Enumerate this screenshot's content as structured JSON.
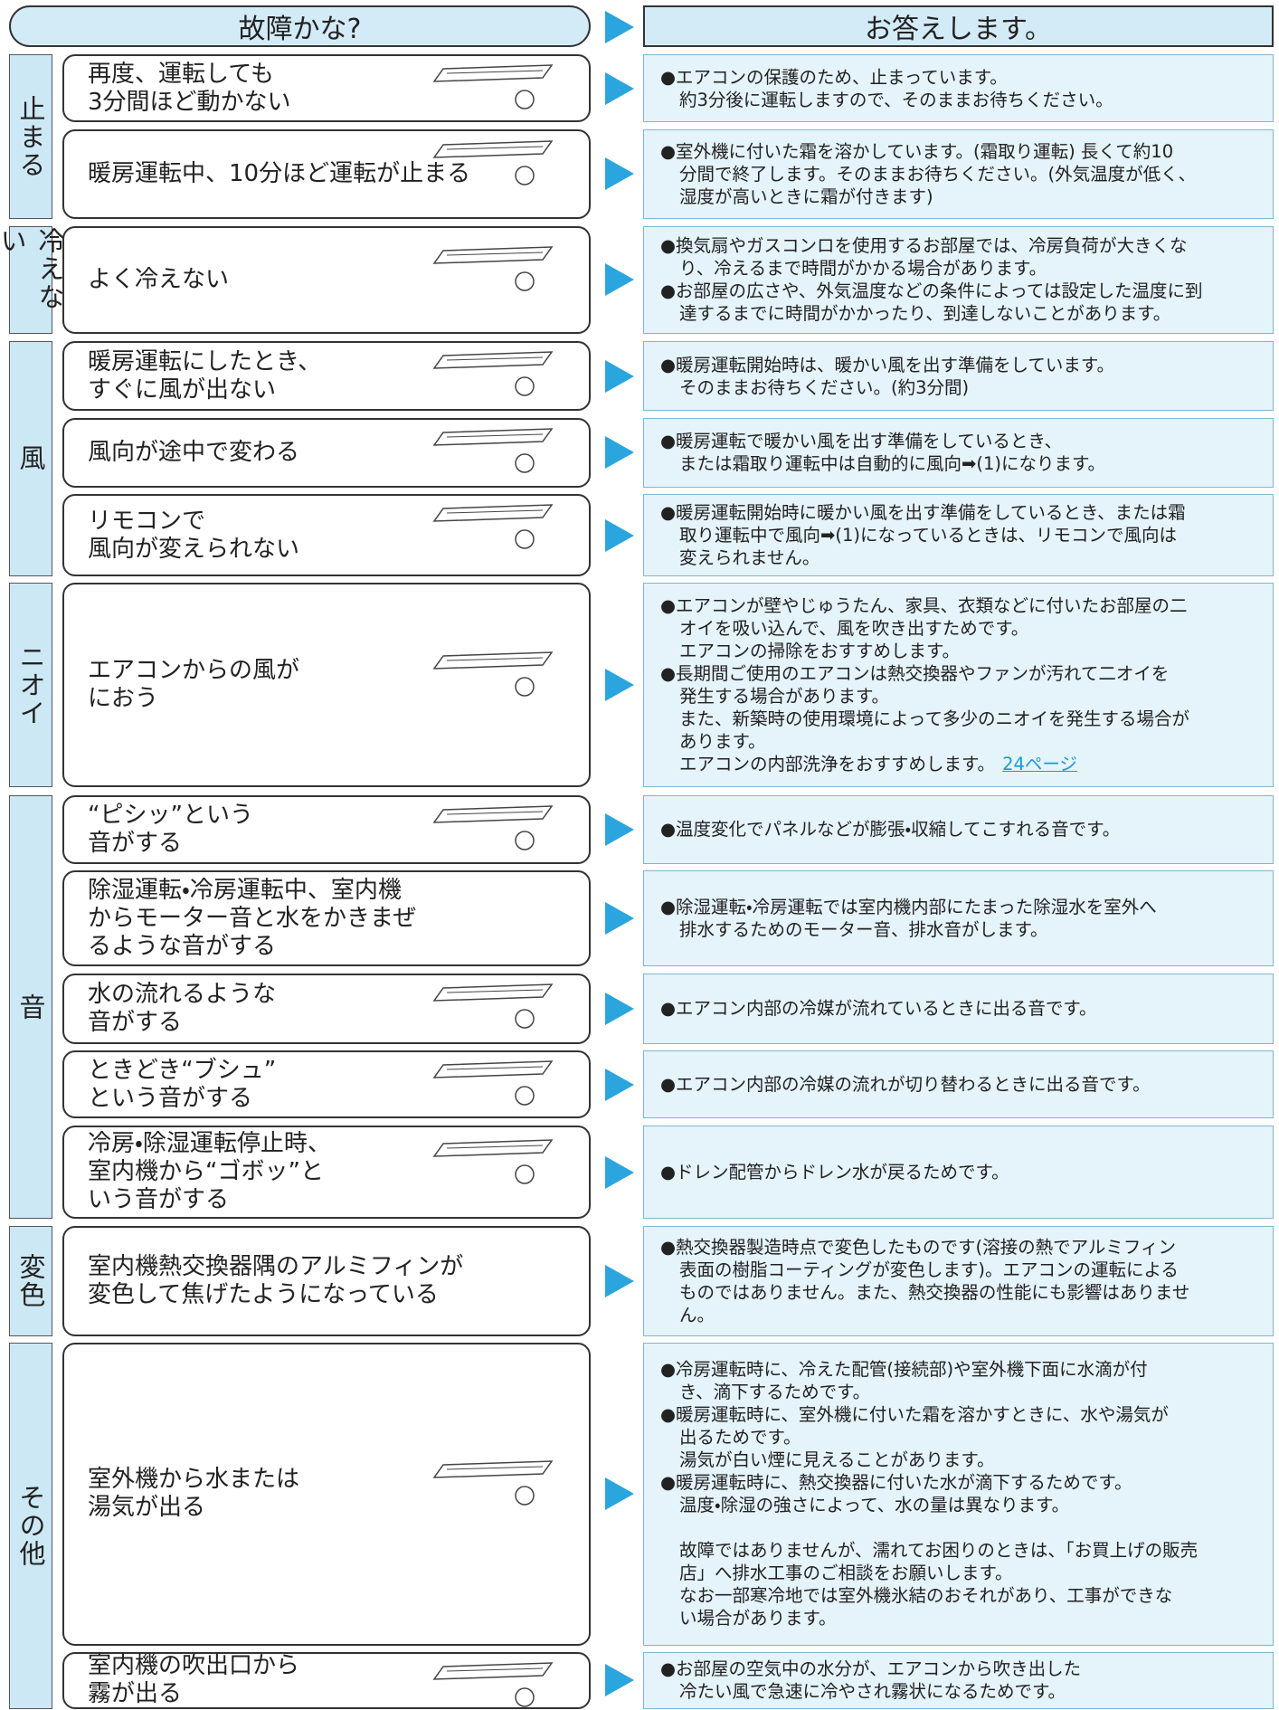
{
  "header": {
    "problem": "故障かな?",
    "answer": "お答えします。"
  },
  "groups": [
    {
      "label": "止まる",
      "items": [
        {
          "symptom": [
            "再度、運転しても",
            "3分間ほど動かない"
          ],
          "answer": [
            "●エアコンの保護のため、止まっています。",
            "約3分後に運転しますので、そのままお待ちください。"
          ]
        },
        {
          "symptom": [
            "暖房運転中、10分ほど運転が止まる"
          ],
          "answer": [
            "●室外機に付いた霜を溶かしています。(霜取り運転) 長くて約10",
            "分間で終了します。そのままお待ちください。(外気温度が低く、",
            "湿度が高いときに霜が付きます)"
          ]
        }
      ]
    },
    {
      "label": "冷えない",
      "items": [
        {
          "symptom": [
            "よく冷えない"
          ],
          "answer": [
            "●換気扇やガスコンロを使用するお部屋では、冷房負荷が大きくな",
            "り、冷えるまで時間がかかる場合があります。",
            "●お部屋の広さや、外気温度などの条件によっては設定した温度に到",
            "達するまでに時間がかかったり、到達しないことがあります。"
          ]
        }
      ]
    },
    {
      "label": "風",
      "items": [
        {
          "symptom": [
            "暖房運転にしたとき、",
            "すぐに風が出ない"
          ],
          "answer": [
            "●暖房運転開始時は、暖かい風を出す準備をしています。",
            "そのままお待ちください。(約3分間)"
          ]
        },
        {
          "symptom": [
            "風向が途中で変わる"
          ],
          "answer": [
            "●暖房運転で暖かい風を出す準備をしているとき、",
            "または霜取り運転中は自動的に風向➡(1)になります。"
          ]
        },
        {
          "symptom": [
            "リモコンで",
            "風向が変えられない"
          ],
          "answer": [
            "●暖房運転開始時に暖かい風を出す準備をしているとき、または霜",
            "取り運転中で風向➡(1)になっているときは、リモコンで風向は",
            "変えられません。"
          ]
        }
      ]
    },
    {
      "label": "ニオイ",
      "items": [
        {
          "symptom": [
            "エアコンからの風が",
            "におう"
          ],
          "answer": [
            "●エアコンが壁やじゅうたん、家具、衣類などに付いたお部屋の二",
            "オイを吸い込んで、風を吹き出すためです。",
            "エアコンの掃除をおすすめします。",
            "●長期間ご使用のエアコンは熱交換器やファンが汚れて二オイを",
            "発生する場合があります。",
            "また、新築時の使用環境によって多少のニオイを発生する場合が",
            "あります。",
            "エアコンの内部洗浄をおすすめします。"
          ],
          "link": "24ページ"
        }
      ]
    },
    {
      "label": "音",
      "items": [
        {
          "symptom": [
            "“ピシッ”という",
            "音がする"
          ],
          "answer": [
            "●温度変化でパネルなどが膨張・収縮してこすれる音です。"
          ]
        },
        {
          "symptom": [
            "除湿運転・冷房運転中、室内機",
            "からモーター音と水をかきまぜ",
            "るような音がする"
          ],
          "answer": [
            "●除湿運転・冷房運転では室内機内部にたまった除湿水を室外へ",
            "排水するためのモーター音、排水音がします。"
          ]
        },
        {
          "symptom": [
            "水の流れるような",
            "音がする"
          ],
          "answer": [
            "●エアコン内部の冷媒が流れているときに出る音です。"
          ]
        },
        {
          "symptom": [
            "ときどき“ブシュ”",
            "という音がする"
          ],
          "answer": [
            "●エアコン内部の冷媒の流れが切り替わるときに出る音です。"
          ]
        },
        {
          "symptom": [
            "冷房・除湿運転停止時、",
            "室内機から“ゴボッ”と",
            "いう音がする"
          ],
          "answer": [
            "●ドレン配管からドレン水が戻るためです。"
          ]
        }
      ]
    },
    {
      "label": "変色",
      "items": [
        {
          "symptom": [
            "室内機熱交換器隅のアルミフィンが",
            "変色して焦げたようになっている"
          ],
          "answer": [
            "●熱交換器製造時点で変色したものです(溶接の熱でアルミフィン",
            "表面の樹脂コーティングが変色します)。エアコンの運転による",
            "ものではありません。また、熱交換器の性能にも影響はありませ",
            "ん。"
          ]
        }
      ]
    },
    {
      "label": "その他",
      "items": [
        {
          "symptom": [
            "室外機から水または",
            "湯気が出る"
          ],
          "answer": [
            "●冷房運転時に、冷えた配管(接続部)や室外機下面に水滴が付",
            "き、滴下するためです。",
            "●暖房運転時に、室外機に付いた霜を溶かすときに、水や湯気が",
            "出るためです。",
            "湯気が白い煙に見えることがあります。",
            "●暖房運転時に、熱交換器に付いた水が滴下するためです。",
            "温度・除湿の強さによって、水の量は異なります。",
            null,
            "故障ではありませんが、濡れてお困りのときは、「お買上げの販売",
            "店」へ排水工事のご相談をお願いします。",
            "なお一部寒冷地では室外機氷結のおそれがあり、工事ができな",
            "い場合があります。"
          ]
        },
        {
          "symptom": [
            "室内機の吹出口から",
            "霧が出る"
          ],
          "answer": [
            "●お部屋の空気中の水分が、エアコンから吹き出した",
            "冷たい風で急速に冷やされ霧状になるためです。"
          ]
        }
      ]
    }
  ]
}
